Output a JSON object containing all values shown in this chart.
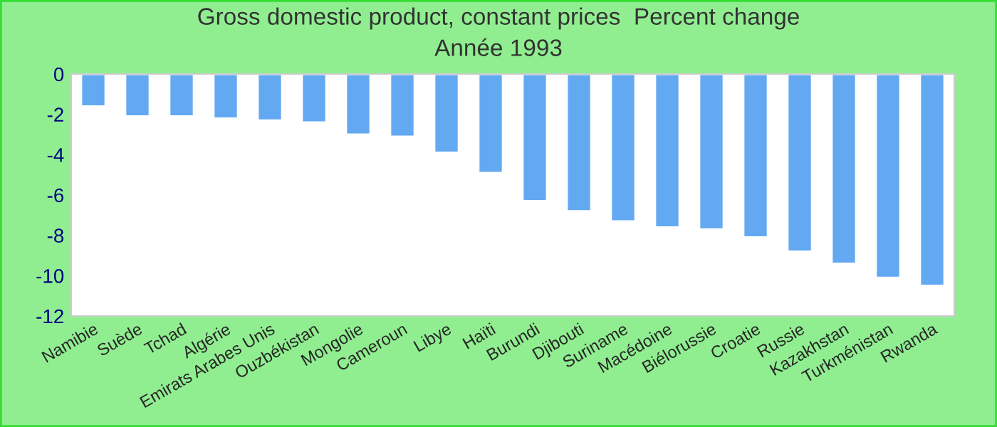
{
  "chart_data": {
    "type": "bar",
    "title": "Gross domestic product, constant prices  Percent change",
    "subtitle": "Année 1993",
    "categories": [
      "Namibie",
      "Suède",
      "Tchad",
      "Algérie",
      "Emirats Arabes Unis",
      "Ouzbékistan",
      "Mongolie",
      "Cameroun",
      "Libye",
      "Haïti",
      "Burundi",
      "Djibouti",
      "Suriname",
      "Macédoine",
      "Biélorussie",
      "Croatie",
      "Russie",
      "Kazakhstan",
      "Turkménistan",
      "Rwanda"
    ],
    "values": [
      -1.6,
      -2.1,
      -2.1,
      -2.2,
      -2.3,
      -2.4,
      -3.0,
      -3.1,
      -3.9,
      -4.9,
      -6.3,
      -6.8,
      -7.3,
      -7.6,
      -7.7,
      -8.1,
      -8.8,
      -9.4,
      -10.1,
      -10.5
    ],
    "color": "#63a9f2",
    "ylim": [
      -12,
      0
    ],
    "yticks": [
      -12,
      -10,
      -8,
      -6,
      -4,
      -2,
      0
    ],
    "grid": false
  }
}
